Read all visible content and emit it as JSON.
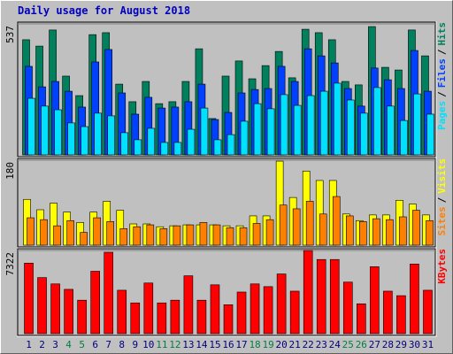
{
  "title": "Daily usage for August 2018",
  "chart_data": [
    {
      "type": "bar",
      "ylim": [
        0,
        537
      ],
      "yticks": [
        537
      ],
      "legend_separator": "/",
      "series": [
        {
          "name": "Hits",
          "color": "#00805c",
          "values": [
            472,
            446,
            512,
            323,
            243,
            493,
            501,
            290,
            218,
            301,
            210,
            218,
            301,
            435,
            149,
            323,
            385,
            312,
            366,
            424,
            316,
            515,
            501,
            472,
            301,
            287,
            526,
            359,
            348,
            512,
            406
          ]
        },
        {
          "name": "Files",
          "color": "#0040ff",
          "values": [
            363,
            279,
            301,
            261,
            196,
            381,
            432,
            254,
            167,
            236,
            192,
            196,
            218,
            290,
            145,
            174,
            254,
            268,
            272,
            363,
            301,
            435,
            406,
            377,
            272,
            200,
            356,
            308,
            272,
            428,
            261
          ]
        },
        {
          "name": "Pages",
          "color": "#00e0ff",
          "values": [
            232,
            200,
            185,
            131,
            116,
            171,
            160,
            91,
            62,
            109,
            51,
            51,
            105,
            192,
            62,
            83,
            138,
            210,
            189,
            247,
            203,
            243,
            261,
            294,
            225,
            171,
            276,
            200,
            141,
            250,
            167
          ]
        }
      ]
    },
    {
      "type": "bar",
      "ylim": [
        0,
        180
      ],
      "yticks": [
        180
      ],
      "legend_separator": "/",
      "series": [
        {
          "name": "Visits",
          "color": "#ffff00",
          "values": [
            97,
            75,
            89,
            70,
            48,
            70,
            93,
            74,
            45,
            45,
            39,
            41,
            43,
            43,
            43,
            41,
            41,
            62,
            62,
            178,
            101,
            157,
            137,
            137,
            66,
            52,
            64,
            64,
            95,
            87,
            64
          ]
        },
        {
          "name": "Sites",
          "color": "#ff8000",
          "values": [
            58,
            54,
            41,
            52,
            27,
            58,
            50,
            35,
            39,
            43,
            35,
            41,
            43,
            48,
            43,
            37,
            37,
            46,
            54,
            85,
            77,
            93,
            66,
            103,
            62,
            50,
            56,
            54,
            60,
            74,
            52
          ]
        }
      ]
    },
    {
      "type": "bar",
      "ylim": [
        0,
        7322
      ],
      "yticks": [
        7322
      ],
      "categories": [
        "1",
        "2",
        "3",
        "4",
        "5",
        "6",
        "7",
        "8",
        "9",
        "10",
        "11",
        "12",
        "13",
        "14",
        "15",
        "16",
        "17",
        "18",
        "19",
        "20",
        "21",
        "22",
        "23",
        "24",
        "25",
        "26",
        "27",
        "28",
        "29",
        "30",
        "31"
      ],
      "category_colors": [
        "#000080",
        "#000080",
        "#000080",
        "#008040",
        "#008040",
        "#000080",
        "#000080",
        "#000080",
        "#000080",
        "#000080",
        "#008040",
        "#008040",
        "#000080",
        "#000080",
        "#000080",
        "#000080",
        "#000080",
        "#008040",
        "#008040",
        "#000080",
        "#000080",
        "#000080",
        "#000080",
        "#000080",
        "#008040",
        "#008040",
        "#000080",
        "#000080",
        "#000080",
        "#000080",
        "#000080"
      ],
      "series": [
        {
          "name": "KBytes",
          "color": "#ff0000",
          "values": [
            6209,
            4935,
            4378,
            3900,
            2945,
            5492,
            7164,
            3821,
            2706,
            4458,
            2706,
            2945,
            5094,
            2945,
            4298,
            2547,
            3662,
            4378,
            4139,
            5254,
            3741,
            7322,
            6527,
            6527,
            4537,
            2627,
            5890,
            3741,
            3343,
            6129,
            3821
          ]
        }
      ]
    }
  ]
}
